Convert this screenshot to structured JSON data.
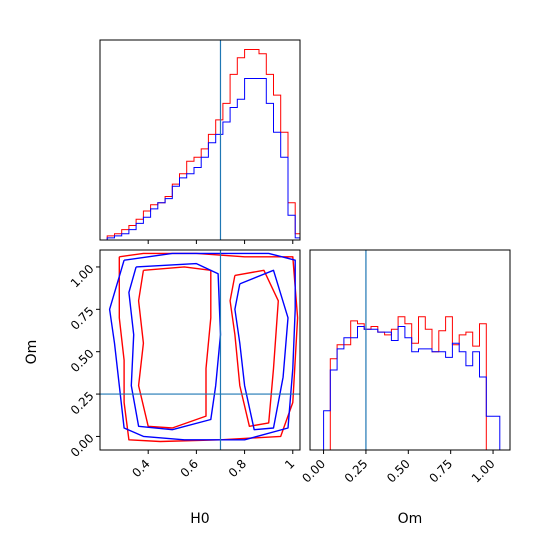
{
  "chart_data": [
    {
      "type": "histogram",
      "panel": "H0 marginal",
      "xlim": [
        0.2,
        1.03
      ],
      "x_ticks": [
        0.4,
        0.6,
        0.8,
        1.0
      ],
      "truth_x": 0.7,
      "bin_edges": [
        0.2,
        0.23,
        0.26,
        0.29,
        0.32,
        0.35,
        0.38,
        0.41,
        0.44,
        0.47,
        0.5,
        0.53,
        0.56,
        0.59,
        0.62,
        0.65,
        0.68,
        0.71,
        0.74,
        0.77,
        0.8,
        0.83,
        0.86,
        0.89,
        0.92,
        0.95,
        0.98,
        1.01,
        1.03
      ],
      "series": [
        {
          "color": "#ff0000",
          "counts": [
            0,
            2,
            3,
            5,
            7,
            10,
            14,
            17,
            18,
            21,
            27,
            32,
            38,
            40,
            44,
            51,
            58,
            66,
            80,
            88,
            92,
            92,
            90,
            80,
            70,
            52,
            18,
            3
          ]
        },
        {
          "color": "#0000ff",
          "counts": [
            0,
            1,
            2,
            3,
            5,
            8,
            11,
            15,
            18,
            20,
            26,
            30,
            32,
            35,
            40,
            47,
            51,
            57,
            64,
            68,
            78,
            78,
            78,
            66,
            52,
            40,
            12,
            1
          ]
        }
      ]
    },
    {
      "type": "contour",
      "panel": "H0 vs Om joint",
      "xlabel": "H0",
      "ylabel": "Om",
      "xlim": [
        0.2,
        1.03
      ],
      "ylim": [
        -0.08,
        1.1
      ],
      "x_ticks": [
        0.4,
        0.6,
        0.8,
        1.0
      ],
      "y_ticks": [
        0.0,
        0.25,
        0.5,
        0.75,
        1.0
      ],
      "truth": {
        "H0": 0.7,
        "Om": 0.25
      },
      "series": [
        {
          "color": "#ff0000",
          "contours": [
            [
              [
                0.28,
                1.06
              ],
              [
                0.38,
                1.08
              ],
              [
                0.6,
                1.08
              ],
              [
                0.8,
                1.06
              ],
              [
                1.0,
                1.06
              ],
              [
                1.02,
                0.7
              ],
              [
                1.0,
                0.2
              ],
              [
                0.95,
                0.0
              ],
              [
                0.7,
                -0.02
              ],
              [
                0.45,
                -0.03
              ],
              [
                0.32,
                -0.02
              ],
              [
                0.3,
                0.2
              ],
              [
                0.3,
                0.45
              ],
              [
                0.28,
                0.7
              ],
              [
                0.28,
                1.06
              ]
            ],
            [
              [
                0.38,
                0.98
              ],
              [
                0.55,
                1.0
              ],
              [
                0.66,
                0.98
              ],
              [
                0.66,
                0.7
              ],
              [
                0.64,
                0.4
              ],
              [
                0.64,
                0.12
              ],
              [
                0.5,
                0.05
              ],
              [
                0.4,
                0.06
              ],
              [
                0.36,
                0.3
              ],
              [
                0.38,
                0.55
              ],
              [
                0.36,
                0.8
              ],
              [
                0.38,
                0.98
              ]
            ],
            [
              [
                0.76,
                0.95
              ],
              [
                0.88,
                0.98
              ],
              [
                0.94,
                0.8
              ],
              [
                0.92,
                0.4
              ],
              [
                0.9,
                0.08
              ],
              [
                0.82,
                0.06
              ],
              [
                0.78,
                0.3
              ],
              [
                0.76,
                0.6
              ],
              [
                0.74,
                0.8
              ],
              [
                0.76,
                0.95
              ]
            ]
          ]
        },
        {
          "color": "#0000ff",
          "contours": [
            [
              [
                0.3,
                1.04
              ],
              [
                0.5,
                1.08
              ],
              [
                0.7,
                1.08
              ],
              [
                0.9,
                1.08
              ],
              [
                1.01,
                1.04
              ],
              [
                1.01,
                0.75
              ],
              [
                1.0,
                0.4
              ],
              [
                0.98,
                0.05
              ],
              [
                0.8,
                -0.02
              ],
              [
                0.55,
                -0.02
              ],
              [
                0.38,
                0.0
              ],
              [
                0.3,
                0.05
              ],
              [
                0.28,
                0.3
              ],
              [
                0.26,
                0.55
              ],
              [
                0.24,
                0.75
              ],
              [
                0.3,
                1.04
              ]
            ],
            [
              [
                0.35,
                1.0
              ],
              [
                0.6,
                1.02
              ],
              [
                0.69,
                0.96
              ],
              [
                0.7,
                0.6
              ],
              [
                0.68,
                0.3
              ],
              [
                0.66,
                0.1
              ],
              [
                0.5,
                0.04
              ],
              [
                0.36,
                0.06
              ],
              [
                0.33,
                0.3
              ],
              [
                0.34,
                0.6
              ],
              [
                0.32,
                0.85
              ],
              [
                0.35,
                1.0
              ]
            ],
            [
              [
                0.78,
                0.9
              ],
              [
                0.92,
                0.98
              ],
              [
                0.98,
                0.7
              ],
              [
                0.96,
                0.35
              ],
              [
                0.92,
                0.05
              ],
              [
                0.84,
                0.04
              ],
              [
                0.8,
                0.3
              ],
              [
                0.78,
                0.55
              ],
              [
                0.76,
                0.75
              ],
              [
                0.78,
                0.9
              ]
            ]
          ]
        }
      ]
    },
    {
      "type": "histogram",
      "panel": "Om marginal",
      "xlabel": "Om",
      "xlim": [
        -0.08,
        1.1
      ],
      "x_ticks": [
        0.0,
        0.25,
        0.5,
        0.75,
        1.0
      ],
      "x_tick_labels": [
        "0.00",
        "0.25",
        "0.50",
        "0.75",
        "1.00"
      ],
      "truth_x": 0.25,
      "bin_edges": [
        -0.04,
        0.0,
        0.04,
        0.08,
        0.12,
        0.16,
        0.2,
        0.24,
        0.28,
        0.32,
        0.36,
        0.4,
        0.44,
        0.48,
        0.52,
        0.56,
        0.6,
        0.64,
        0.68,
        0.72,
        0.76,
        0.8,
        0.84,
        0.88,
        0.92,
        0.96,
        1.0,
        1.04,
        1.08
      ],
      "series": [
        {
          "color": "#ff0000",
          "counts": [
            0,
            0,
            65,
            75,
            75,
            92,
            90,
            86,
            88,
            84,
            82,
            86,
            95,
            90,
            76,
            95,
            86,
            70,
            85,
            95,
            75,
            82,
            84,
            74,
            90,
            0,
            0,
            0
          ]
        },
        {
          "color": "#0000ff",
          "counts": [
            0,
            28,
            57,
            72,
            80,
            80,
            88,
            86,
            86,
            84,
            84,
            78,
            88,
            80,
            70,
            72,
            72,
            70,
            70,
            66,
            76,
            70,
            60,
            70,
            52,
            24,
            24,
            0
          ]
        }
      ]
    }
  ],
  "colors": {
    "truth_line": "#1f77b4",
    "frame": "#000000"
  }
}
